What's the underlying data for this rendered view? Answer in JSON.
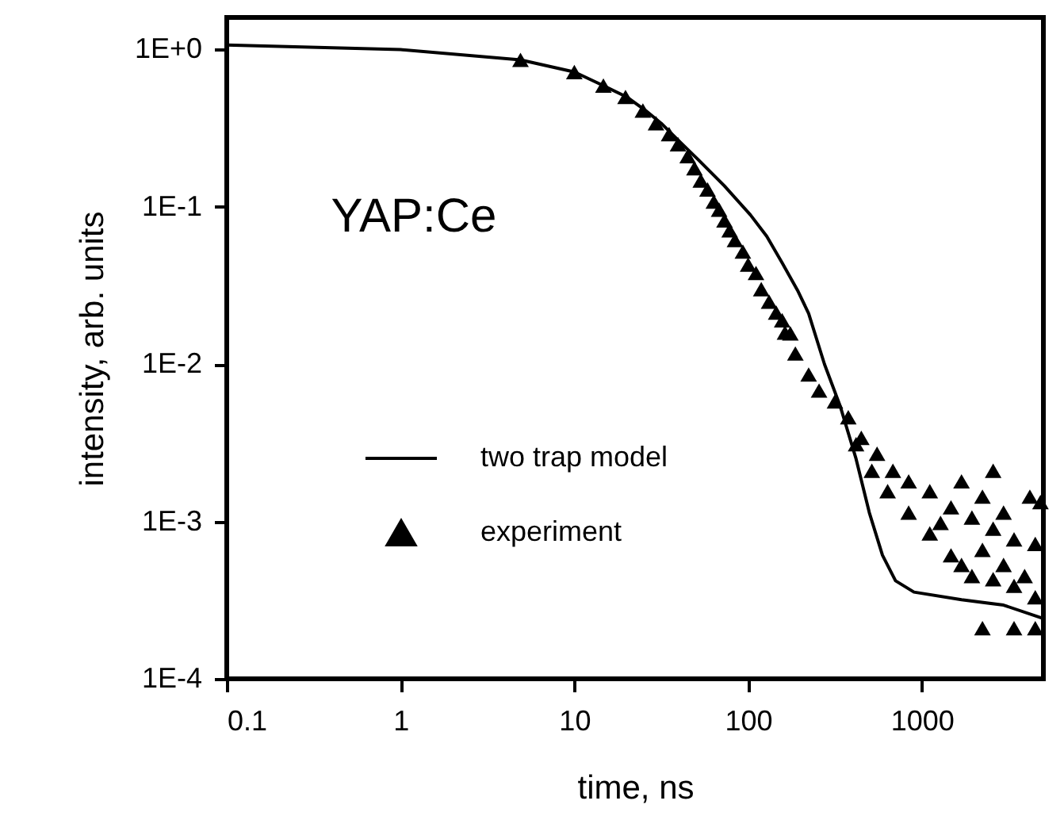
{
  "chart_data": {
    "type": "line",
    "xlabel": "time, ns",
    "ylabel": "intensity, arb. units",
    "annotations": [
      "YAP:Ce"
    ],
    "log": "xy",
    "xlim": [
      0.1,
      5000
    ],
    "ylim": [
      0.0001,
      1.6
    ],
    "xticks": [
      0.1,
      1,
      10,
      100,
      1000
    ],
    "yticks": [
      {
        "value": 1,
        "label": "1E+0"
      },
      {
        "value": 0.1,
        "label": "1E-1"
      },
      {
        "value": 0.01,
        "label": "1E-2"
      },
      {
        "value": 0.001,
        "label": "1E-3"
      },
      {
        "value": 0.0001,
        "label": "1E-4"
      }
    ],
    "legend": "bottom left",
    "grid": false,
    "series": [
      {
        "name": "two trap model",
        "color": "#000000",
        "line_style": "solid",
        "x": [
          0.1,
          1,
          4.9,
          10,
          14.7,
          20,
          25.7,
          31.6,
          39,
          51.5,
          73,
          103,
          128,
          157,
          194,
          223,
          275,
          339,
          418,
          498,
          593,
          705,
          900,
          1690,
          2950,
          4980
        ],
        "values": [
          1.07,
          1.0,
          0.86,
          0.72,
          0.59,
          0.5,
          0.41,
          0.34,
          0.27,
          0.2,
          0.136,
          0.089,
          0.065,
          0.044,
          0.029,
          0.021,
          0.01,
          0.0054,
          0.0025,
          0.00114,
          0.00061,
          0.00042,
          0.000356,
          0.000318,
          0.000294,
          0.000242
        ]
      },
      {
        "name": "experiment",
        "type": "scatter",
        "marker": "triangle",
        "color": "#000000",
        "x": [
          4.9,
          10,
          14.7,
          19.7,
          24.8,
          29.5,
          35.1,
          39.5,
          44.9,
          49.1,
          53.4,
          58.4,
          63.5,
          68.1,
          73.1,
          78.3,
          84,
          93.3,
          100,
          111,
          119,
          132,
          145,
          157,
          175,
          187,
          163,
          223,
          256,
          316,
          377,
          448,
          552,
          681,
          839,
          1110,
          1470,
          1940,
          2570,
          3390,
          4490,
          418,
          515,
          635,
          839,
          1110,
          1470,
          1690,
          1940,
          2570,
          3390,
          4490,
          2230,
          3390,
          4490,
          4180,
          4810,
          1690,
          2230,
          2950,
          1280,
          2230,
          2950,
          3900,
          2570
        ],
        "values": [
          0.86,
          0.72,
          0.59,
          0.5,
          0.41,
          0.34,
          0.29,
          0.25,
          0.21,
          0.176,
          0.147,
          0.129,
          0.108,
          0.096,
          0.082,
          0.071,
          0.0615,
          0.052,
          0.043,
          0.038,
          0.03,
          0.025,
          0.0213,
          0.019,
          0.0157,
          0.0117,
          0.0159,
          0.0086,
          0.0068,
          0.0058,
          0.0046,
          0.0034,
          0.0027,
          0.0021,
          0.0018,
          0.00156,
          0.00123,
          0.00106,
          0.0009,
          0.00077,
          0.00072,
          0.0031,
          0.0021,
          0.00156,
          0.00114,
          0.00084,
          0.00061,
          0.00053,
          0.00045,
          0.00043,
          0.00039,
          0.00033,
          0.00021,
          0.00021,
          0.00021,
          0.00144,
          0.00133,
          0.0018,
          0.00144,
          0.00114,
          0.00098,
          0.00066,
          0.00053,
          0.00045,
          0.0021
        ]
      }
    ]
  }
}
